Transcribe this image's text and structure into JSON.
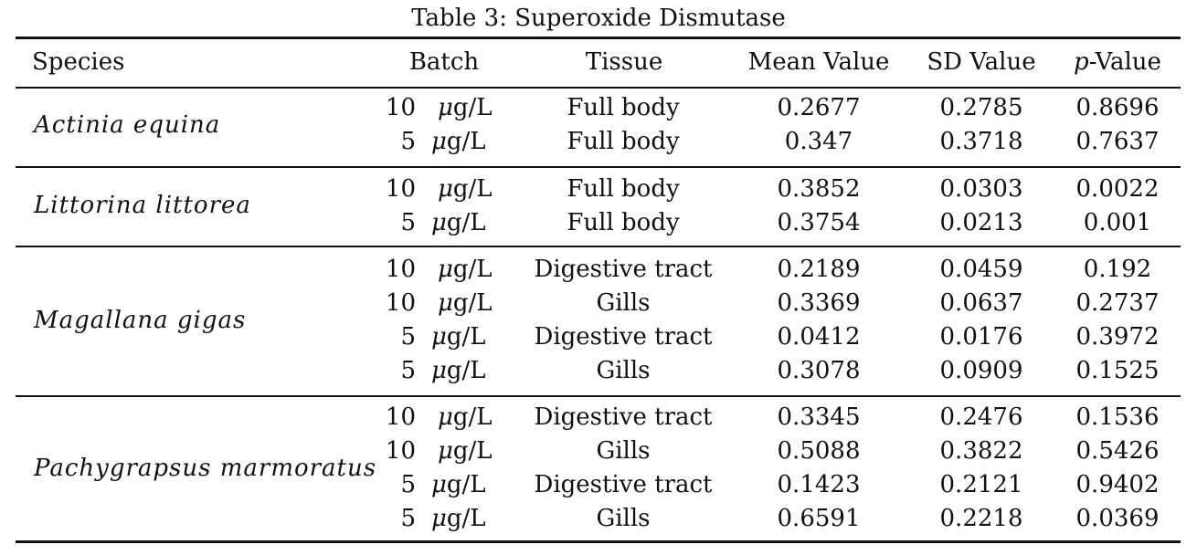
{
  "caption": "Table 3: Superoxide Dismutase",
  "headers": {
    "species": "Species",
    "batch": "Batch",
    "tissue": "Tissue",
    "mean": "Mean Value",
    "sd": "SD Value",
    "p_italic": "p",
    "p_rest": "-Value"
  },
  "unit_mu": "μ",
  "unit_rest": "g/L",
  "groups": [
    {
      "species": "Actinia equina",
      "rows": [
        {
          "dose": "10",
          "tissue": "Full body",
          "mean": "0.2677",
          "sd": "0.2785",
          "p": "0.8696"
        },
        {
          "dose": "5",
          "tissue": "Full body",
          "mean": "0.347",
          "sd": "0.3718",
          "p": "0.7637"
        }
      ]
    },
    {
      "species": "Littorina littorea",
      "rows": [
        {
          "dose": "10",
          "tissue": "Full body",
          "mean": "0.3852",
          "sd": "0.0303",
          "p": "0.0022"
        },
        {
          "dose": "5",
          "tissue": "Full body",
          "mean": "0.3754",
          "sd": "0.0213",
          "p": "0.001"
        }
      ]
    },
    {
      "species": "Magallana gigas",
      "rows": [
        {
          "dose": "10",
          "tissue": "Digestive tract",
          "mean": "0.2189",
          "sd": "0.0459",
          "p": "0.192"
        },
        {
          "dose": "10",
          "tissue": "Gills",
          "mean": "0.3369",
          "sd": "0.0637",
          "p": "0.2737"
        },
        {
          "dose": "5",
          "tissue": "Digestive tract",
          "mean": "0.0412",
          "sd": "0.0176",
          "p": "0.3972"
        },
        {
          "dose": "5",
          "tissue": "Gills",
          "mean": "0.3078",
          "sd": "0.0909",
          "p": "0.1525"
        }
      ]
    },
    {
      "species": "Pachygrapsus marmoratus",
      "rows": [
        {
          "dose": "10",
          "tissue": "Digestive tract",
          "mean": "0.3345",
          "sd": "0.2476",
          "p": "0.1536"
        },
        {
          "dose": "10",
          "tissue": "Gills",
          "mean": "0.5088",
          "sd": "0.3822",
          "p": "0.5426"
        },
        {
          "dose": "5",
          "tissue": "Digestive tract",
          "mean": "0.1423",
          "sd": "0.2121",
          "p": "0.9402"
        },
        {
          "dose": "5",
          "tissue": "Gills",
          "mean": "0.6591",
          "sd": "0.2218",
          "p": "0.0369"
        }
      ]
    }
  ]
}
